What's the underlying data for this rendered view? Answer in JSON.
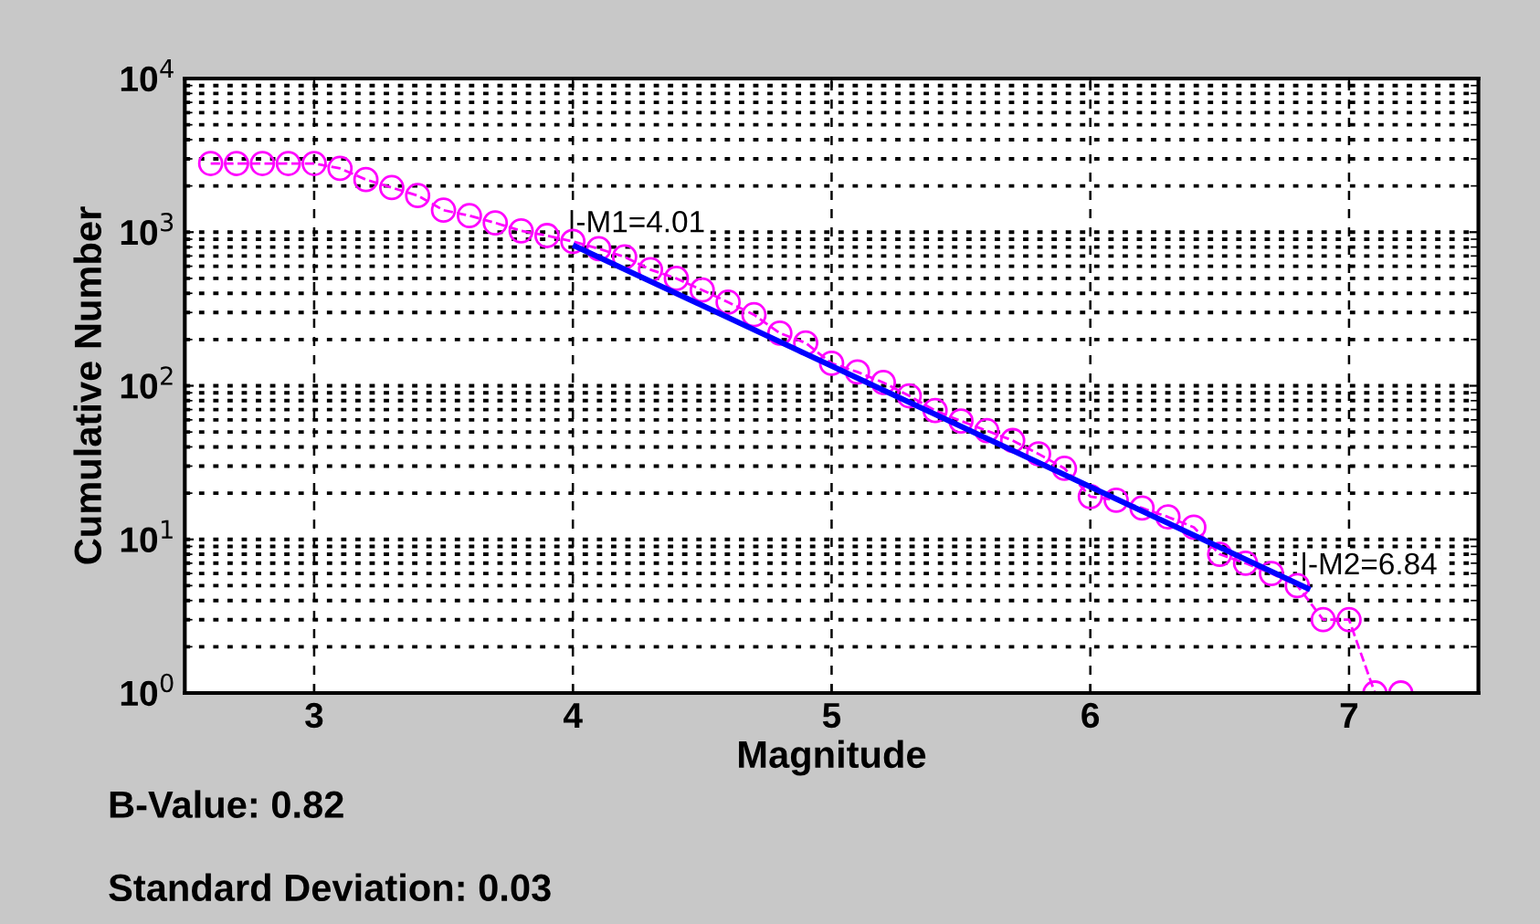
{
  "chart_data": {
    "type": "line",
    "xlabel": "Magnitude",
    "ylabel": "Cumulative Number",
    "log": "y",
    "xlim": [
      2.5,
      7.5
    ],
    "xticks": [
      3,
      4,
      5,
      6,
      7
    ],
    "ylim": [
      1,
      10000
    ],
    "yticks": [
      {
        "value": 1,
        "label": "10$^{0}$"
      },
      {
        "value": 10,
        "label": "10$^{1}$"
      },
      {
        "value": 100,
        "label": "10$^{2}$"
      },
      {
        "value": 1000,
        "label": "10$^{3}$"
      },
      {
        "value": 10000,
        "label": "10$^{4}$"
      }
    ],
    "grid": true,
    "series": [
      {
        "color": "#ff00ff",
        "marker": "circle",
        "line_style": "dashed",
        "x": [
          2.6,
          2.7,
          2.8,
          2.9,
          3.0,
          3.1,
          3.2,
          3.3,
          3.4,
          3.5,
          3.6,
          3.7,
          3.8,
          3.9,
          4.0,
          4.1,
          4.2,
          4.3,
          4.4,
          4.5,
          4.6,
          4.7,
          4.8,
          4.9,
          5.0,
          5.1,
          5.2,
          5.3,
          5.4,
          5.5,
          5.6,
          5.7,
          5.8,
          5.9,
          6.0,
          6.1,
          6.2,
          6.3,
          6.4,
          6.5,
          6.6,
          6.7,
          6.8,
          6.9,
          7.0,
          7.1,
          7.2
        ],
        "values": [
          2800,
          2800,
          2800,
          2800,
          2800,
          2600,
          2200,
          1950,
          1730,
          1390,
          1280,
          1150,
          1020,
          950,
          870,
          780,
          690,
          570,
          500,
          420,
          350,
          290,
          220,
          190,
          140,
          123,
          105,
          86,
          69,
          59,
          51,
          44,
          36,
          29,
          19,
          18,
          16,
          14,
          12,
          8,
          7,
          6,
          5,
          3,
          3,
          1,
          1
        ]
      },
      {
        "color": "#0000ff",
        "marker": "none",
        "line_style": "solid",
        "x": [
          4.01,
          6.84
        ],
        "values": [
          810,
          4.8
        ]
      }
    ],
    "annotations": [
      {
        "text": "|-M1=4.01",
        "x": 4.01,
        "y": 810
      },
      {
        "text": "|-M2=6.84",
        "x": 6.84,
        "y": 4.8
      },
      "B-Value: 0.82",
      "Standard Deviation: 0.03"
    ]
  }
}
